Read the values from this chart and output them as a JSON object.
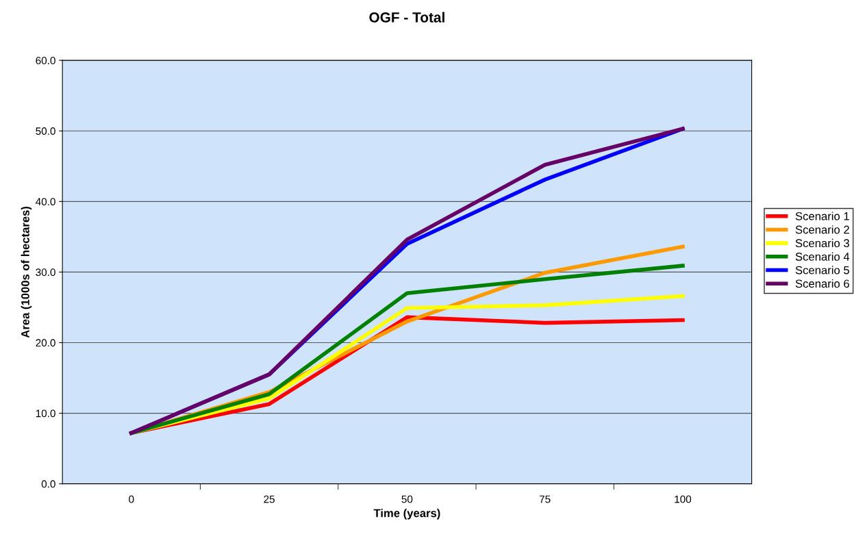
{
  "chart_data": {
    "type": "line",
    "title": "OGF - Total",
    "xlabel": "Time (years)",
    "ylabel": "Area (1000s of hectares)",
    "categories": [
      "0",
      "25",
      "50",
      "75",
      "100"
    ],
    "series": [
      {
        "name": "Scenario 1",
        "color": "#ff0000",
        "values": [
          7.2,
          11.3,
          23.6,
          22.8,
          23.2
        ]
      },
      {
        "name": "Scenario 2",
        "color": "#ff9900",
        "values": [
          7.2,
          13.0,
          23.0,
          29.9,
          33.6
        ]
      },
      {
        "name": "Scenario 3",
        "color": "#ffff00",
        "values": [
          7.2,
          12.1,
          24.9,
          25.3,
          26.6
        ]
      },
      {
        "name": "Scenario 4",
        "color": "#008000",
        "values": [
          7.2,
          12.7,
          27.0,
          29.0,
          30.9
        ]
      },
      {
        "name": "Scenario 5",
        "color": "#0000ff",
        "values": [
          7.2,
          15.5,
          34.0,
          43.1,
          50.3
        ]
      },
      {
        "name": "Scenario 6",
        "color": "#660066",
        "values": [
          7.2,
          15.5,
          34.6,
          45.2,
          50.3
        ]
      }
    ],
    "ylim": [
      0,
      60
    ],
    "yticks": [
      {
        "value": 0,
        "label": "0.0"
      },
      {
        "value": 10,
        "label": "10.0"
      },
      {
        "value": 20,
        "label": "20.0"
      },
      {
        "value": 30,
        "label": "30.0"
      },
      {
        "value": 40,
        "label": "40.0"
      },
      {
        "value": 50,
        "label": "50.0"
      },
      {
        "value": 60,
        "label": "60.0"
      }
    ],
    "grid": "y",
    "legend": "right",
    "marker": "none",
    "line_style": "solid"
  }
}
